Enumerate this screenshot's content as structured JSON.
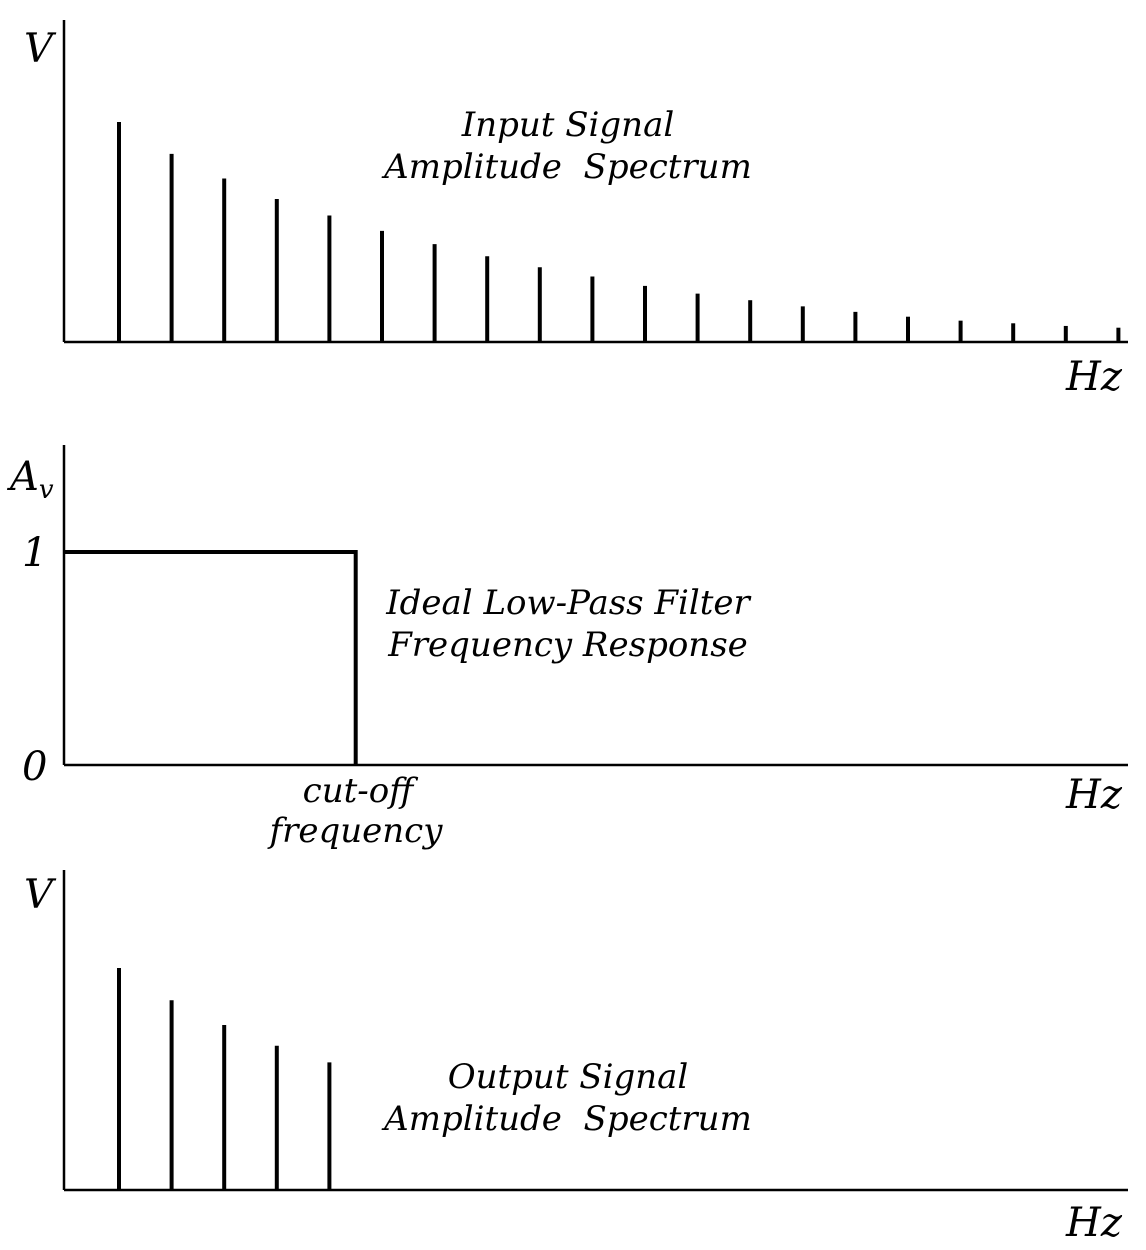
{
  "colors": {
    "ink": "#000000",
    "background": "#ffffff"
  },
  "panels": {
    "input": {
      "y_label": "V",
      "x_label": "Hz",
      "title_line1": "Input Signal",
      "title_line2": "Amplitude  Spectrum",
      "spike_heights": [
        1.0,
        0.855,
        0.743,
        0.65,
        0.575,
        0.505,
        0.445,
        0.39,
        0.34,
        0.298,
        0.255,
        0.22,
        0.19,
        0.162,
        0.137,
        0.115,
        0.097,
        0.085,
        0.073,
        0.065
      ]
    },
    "filter": {
      "y_label_main": "A",
      "y_label_sub": "v",
      "y_tick_top": "1",
      "y_tick_bottom": "0",
      "x_label": "Hz",
      "cutoff_label_line1": "cut-off",
      "cutoff_label_line2": "frequency",
      "title_line1": "Ideal Low-Pass Filter",
      "title_line2": "Frequency Response",
      "passband_gain": 1,
      "stopband_gain": 0,
      "cutoff_harmonic": 5.5
    },
    "output": {
      "y_label": "V",
      "x_label": "Hz",
      "title_line1": "Output Signal",
      "title_line2": "Amplitude  Spectrum",
      "spike_heights": [
        1.0,
        0.855,
        0.743,
        0.65,
        0.575
      ]
    }
  }
}
